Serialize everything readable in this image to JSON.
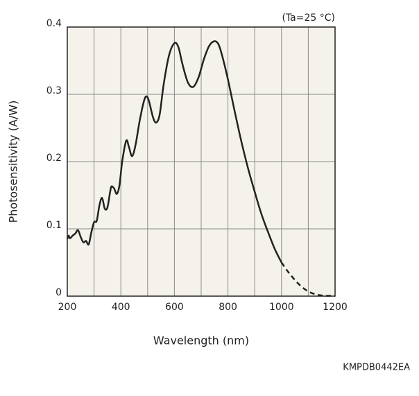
{
  "chart_data": {
    "type": "line",
    "annotation": "(Ta=25 °C)",
    "ylabel": "Photosensitivity (A/W)",
    "xlabel": "Wavelength (nm)",
    "code": "KMPDB0442EA",
    "xlim": [
      200,
      1200
    ],
    "xticks": [
      200,
      400,
      600,
      800,
      1000,
      1200
    ],
    "xminor_ticks": [
      300,
      500,
      700,
      900,
      1100
    ],
    "ylim": [
      0,
      0.4
    ],
    "yticks": [
      0,
      0.1,
      0.2,
      0.3,
      0.4
    ],
    "grid": true,
    "series": [
      {
        "color": "#222222",
        "dashed": false,
        "x": [
          200,
          205,
          210,
          220,
          230,
          240,
          250,
          260,
          270,
          280,
          290,
          300,
          310,
          320,
          330,
          340,
          350,
          360,
          365,
          375,
          385,
          395,
          405,
          420,
          430,
          442,
          455,
          470,
          485,
          495,
          505,
          520,
          532,
          545,
          560,
          580,
          600,
          615,
          630,
          650,
          670,
          690,
          710,
          730,
          750,
          765,
          780,
          800,
          825,
          850,
          875,
          900,
          925,
          950,
          975,
          1000
        ],
        "values": [
          0.085,
          0.09,
          0.086,
          0.09,
          0.093,
          0.098,
          0.088,
          0.08,
          0.082,
          0.077,
          0.095,
          0.11,
          0.112,
          0.135,
          0.146,
          0.13,
          0.132,
          0.155,
          0.163,
          0.16,
          0.152,
          0.165,
          0.2,
          0.231,
          0.222,
          0.208,
          0.225,
          0.26,
          0.288,
          0.297,
          0.29,
          0.266,
          0.258,
          0.27,
          0.315,
          0.358,
          0.376,
          0.37,
          0.345,
          0.318,
          0.311,
          0.325,
          0.352,
          0.372,
          0.379,
          0.374,
          0.355,
          0.322,
          0.275,
          0.23,
          0.19,
          0.155,
          0.122,
          0.095,
          0.07,
          0.05
        ]
      },
      {
        "color": "#222222",
        "dashed": true,
        "x": [
          1000,
          1025,
          1050,
          1075,
          1100,
          1125,
          1150,
          1175,
          1200
        ],
        "values": [
          0.05,
          0.036,
          0.024,
          0.014,
          0.007,
          0.003,
          0.001,
          0.0005,
          0.0005
        ]
      }
    ]
  }
}
